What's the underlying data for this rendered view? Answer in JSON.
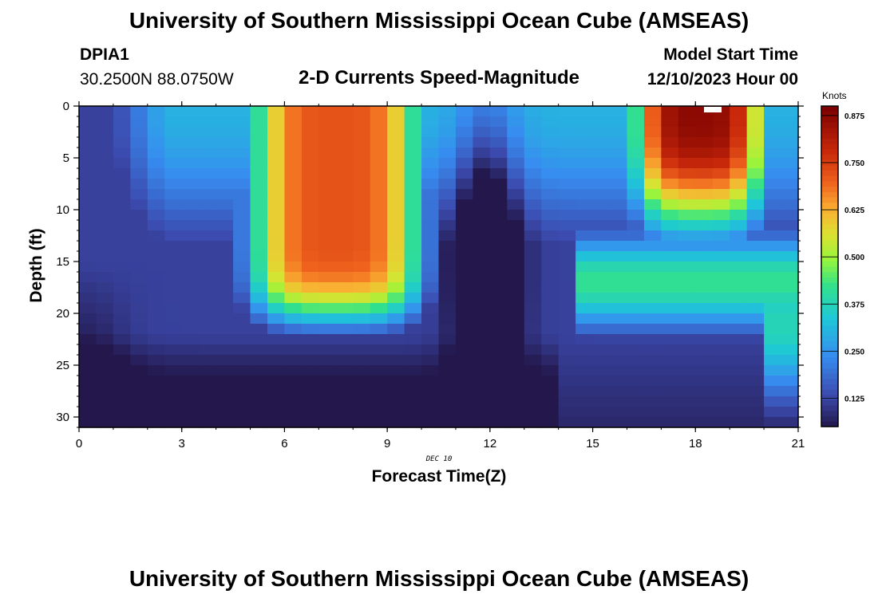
{
  "header": {
    "top_title": "University of Southern Mississippi Ocean Cube (AMSEAS)",
    "bottom_title": "University of Southern Mississippi Ocean Cube (AMSEAS)",
    "station_id": "DPIA1",
    "station_coords": "30.2500N  88.0750W",
    "model_start_label": "Model Start Time",
    "model_start_value": "12/10/2023 Hour 00"
  },
  "chart_data": {
    "type": "heatmap",
    "title": "2-D Currents Speed-Magnitude",
    "xlabel": "Forecast Time(Z)",
    "ylabel": "Depth (ft)",
    "date_annotation": "DEC 10",
    "xlim": [
      0,
      21
    ],
    "ylim": [
      0,
      31
    ],
    "y_inverted": true,
    "x_ticks": [
      "0",
      "3",
      "6",
      "9",
      "12",
      "15",
      "18",
      "21"
    ],
    "y_ticks": [
      "0",
      "5",
      "10",
      "15",
      "20",
      "25",
      "30"
    ],
    "colorbar": {
      "title": "Knots",
      "range": [
        0.05,
        0.9
      ],
      "ticks": [
        "0.875",
        "0.750",
        "0.625",
        "0.500",
        "0.375",
        "0.250",
        "0.125"
      ]
    },
    "grid": false,
    "description_of_values": "Current speed (knots) vs forecast hour (x) and depth in feet (y). High-speed cores near hours 5-10 (0.6-0.7 kt, 3-20 ft) and hours 16-19.5 (up to ~0.85 kt, 0-12 ft); minimum ~0.05 kt near seabed at hour 0-1 and a low band near hour 12 (~0.1 kt)."
  }
}
